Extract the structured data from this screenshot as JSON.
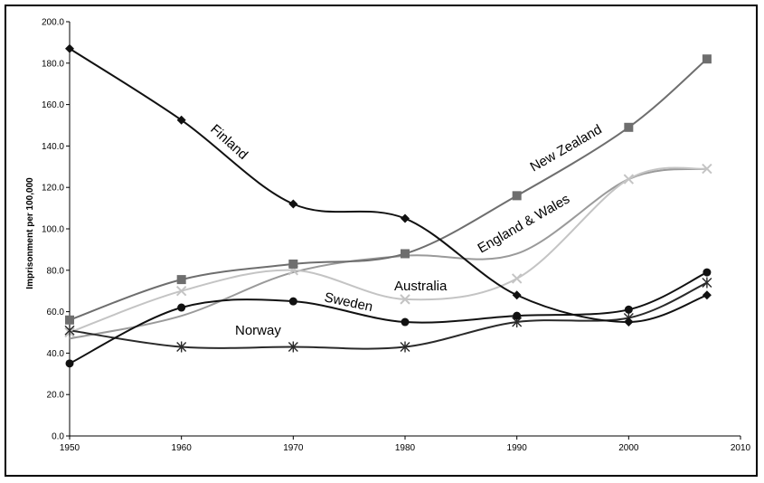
{
  "chart_data": {
    "type": "line",
    "title": "",
    "xlabel": "",
    "ylabel": "Imprisonment per 100,000",
    "xlim": [
      1950,
      2010
    ],
    "ylim": [
      0,
      200
    ],
    "x_ticks": [
      "1950",
      "1960",
      "1970",
      "1980",
      "1990",
      "2000",
      "2010"
    ],
    "y_ticks": [
      "0.0",
      "20.0",
      "40.0",
      "60.0",
      "80.0",
      "100.0",
      "120.0",
      "140.0",
      "160.0",
      "180.0",
      "200.0"
    ],
    "x": [
      1950,
      1960,
      1970,
      1980,
      1990,
      2000,
      2007
    ],
    "grid": false,
    "series": [
      {
        "name": "Finland",
        "color": "#111111",
        "marker": "diamond",
        "values": [
          187,
          152.5,
          112,
          105,
          68,
          55,
          68
        ]
      },
      {
        "name": "New Zealand",
        "color": "#6e6e6e",
        "marker": "square",
        "values": [
          56,
          75.5,
          83,
          88,
          116,
          149,
          182
        ]
      },
      {
        "name": "England & Wales",
        "color": "#c4c4c4",
        "marker": "x",
        "values": [
          50,
          70,
          80,
          66,
          76,
          124,
          129
        ]
      },
      {
        "name": "Australia",
        "color": "#9a9a9a",
        "marker": "none",
        "values": [
          47,
          58,
          79,
          87,
          88,
          124,
          129
        ]
      },
      {
        "name": "Sweden",
        "color": "#111111",
        "marker": "circle",
        "values": [
          35,
          62,
          65,
          55,
          58,
          61,
          79
        ]
      },
      {
        "name": "Norway",
        "color": "#2a2a2a",
        "marker": "star",
        "values": [
          51,
          43,
          43,
          43,
          55,
          57,
          74
        ]
      }
    ]
  }
}
